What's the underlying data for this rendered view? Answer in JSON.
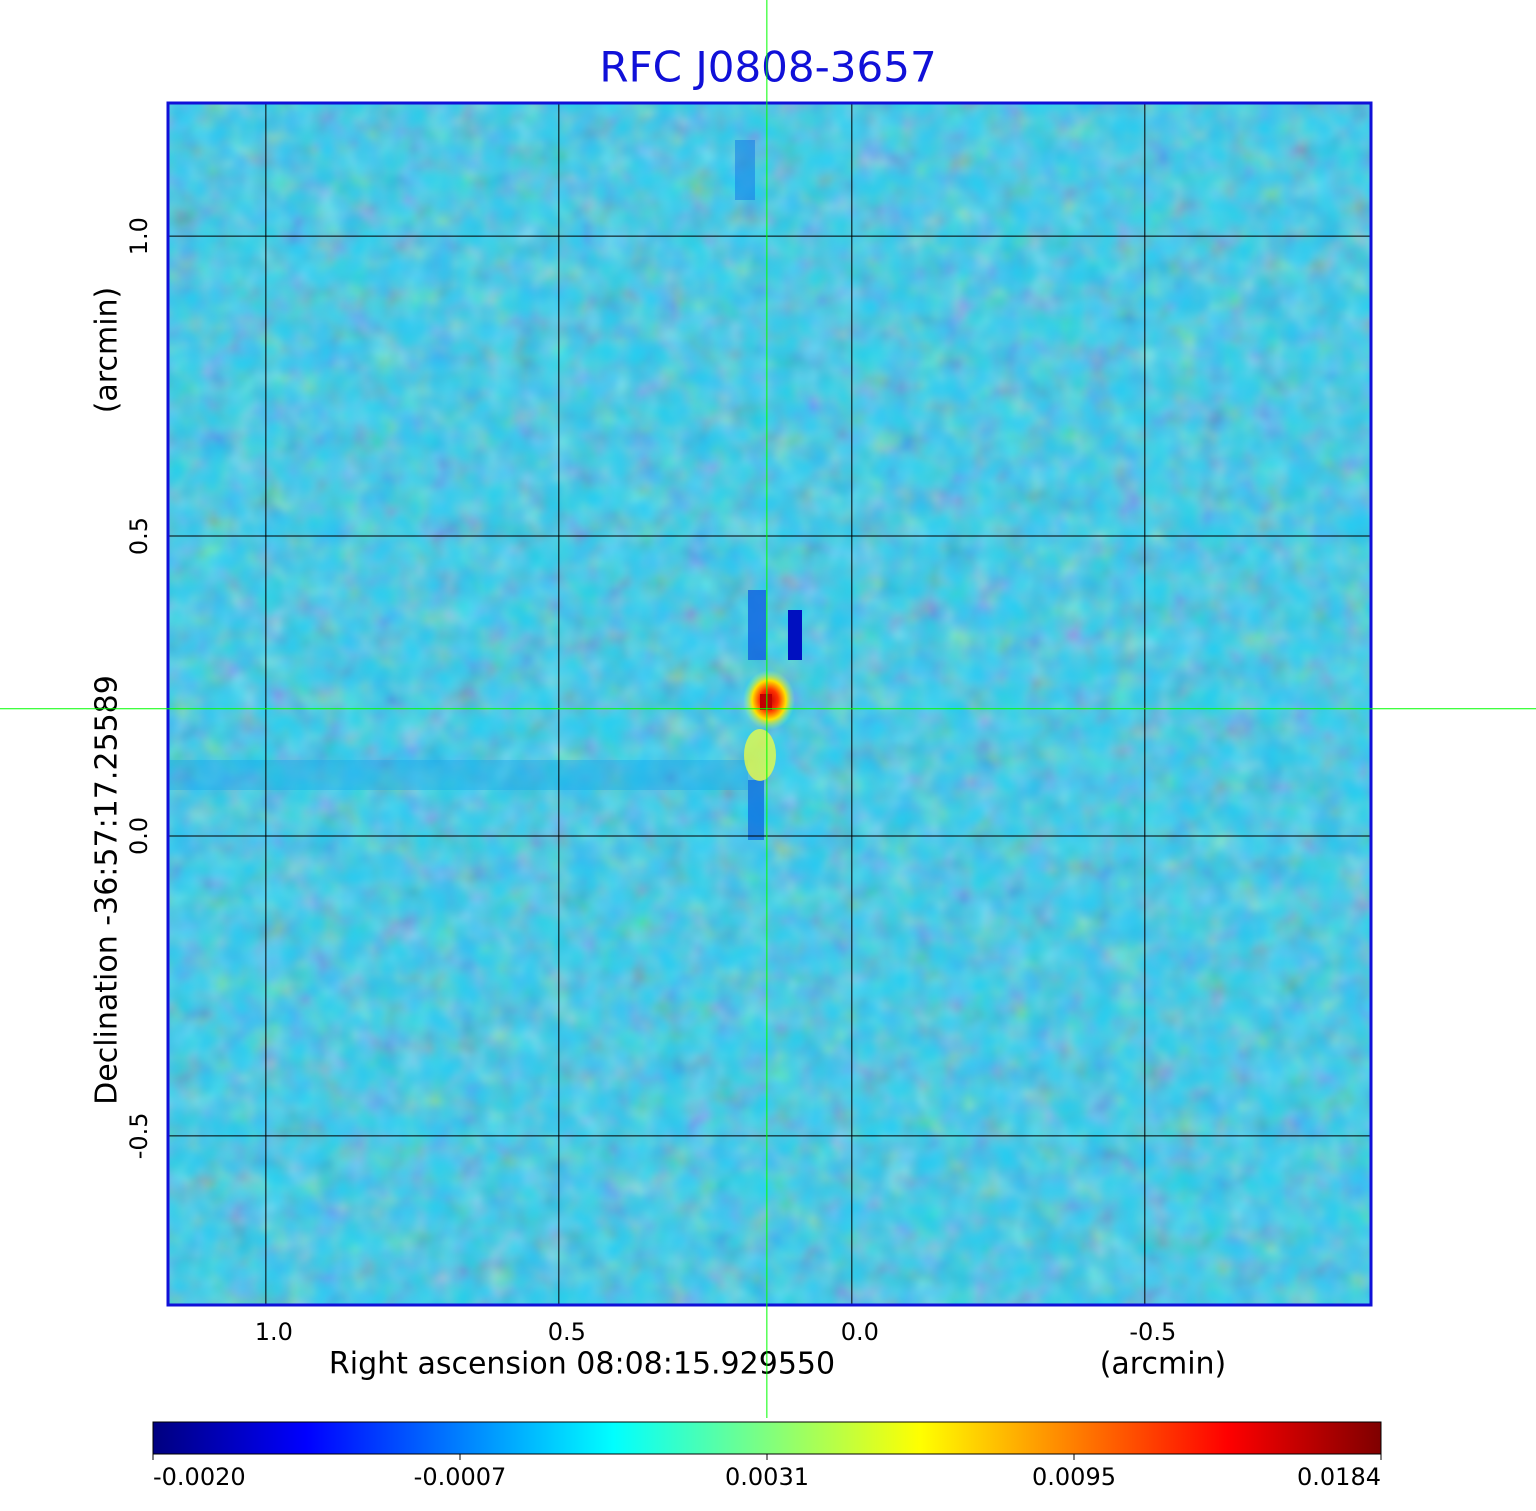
{
  "chart_data": {
    "type": "image",
    "title": "RFC J0808-3657",
    "x_label": "Right ascension  08:08:15.929550",
    "x_unit": "(arcmin)",
    "y_label": "Declination  -36:57:17.25589",
    "y_unit": "(arcmin)",
    "xlim": [
      1.167,
      -0.886
    ],
    "ylim": [
      -0.782,
      1.222
    ],
    "xticks": [
      {
        "value": 1,
        "label": "1.0"
      },
      0.5,
      {
        "value": 0,
        "label": "0.0"
      },
      -0.5
    ],
    "yticks": [
      {
        "value": 1,
        "label": "1.0"
      },
      0.5,
      {
        "value": 0,
        "label": "0.0"
      },
      -0.5
    ],
    "grid": true,
    "crosshair": {
      "x": 0.145,
      "y": 0.212,
      "color": "#00ff00"
    },
    "colormap": "jet",
    "colorbar_ticks": [
      {
        "value": -0.002,
        "label": "-0.0020"
      },
      {
        "value": -0.0007,
        "label": "-0.0007"
      },
      0.0031,
      0.0095,
      0.0184
    ]
  }
}
